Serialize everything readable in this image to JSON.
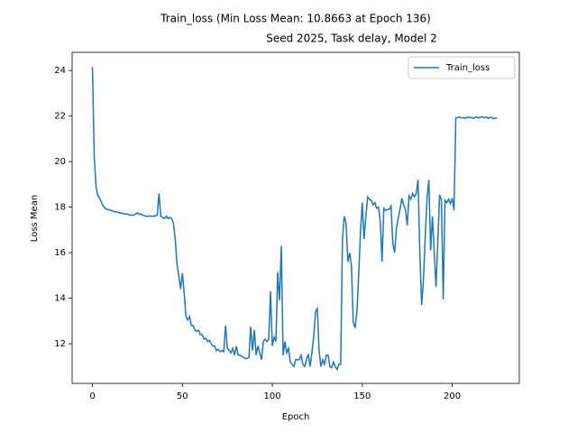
{
  "chart_data": {
    "type": "line",
    "title": [
      "Train_loss (Min Loss Mean: 10.8663 at Epoch 136)",
      "Seed 2025, Task delay, Model 2"
    ],
    "xlabel": "Epoch",
    "ylabel": "Loss Mean",
    "xlim": [
      -11.3,
      237.3
    ],
    "ylim": [
      10.26,
      24.8
    ],
    "xticks": [
      0,
      50,
      100,
      150,
      200
    ],
    "yticks": [
      12,
      14,
      16,
      18,
      20,
      22,
      24
    ],
    "legend": "upper right",
    "grid": false,
    "x": [
      0,
      1,
      2,
      3,
      4,
      5,
      6,
      7,
      8,
      9,
      10,
      11,
      12,
      13,
      14,
      15,
      16,
      17,
      18,
      19,
      20,
      21,
      22,
      23,
      24,
      25,
      26,
      27,
      28,
      29,
      30,
      31,
      32,
      33,
      34,
      35,
      36,
      37,
      38,
      39,
      40,
      41,
      42,
      43,
      44,
      45,
      46,
      47,
      48,
      49,
      50,
      51,
      52,
      53,
      54,
      55,
      56,
      57,
      58,
      59,
      60,
      61,
      62,
      63,
      64,
      65,
      66,
      67,
      68,
      69,
      70,
      71,
      72,
      73,
      74,
      75,
      76,
      77,
      78,
      79,
      80,
      81,
      82,
      83,
      84,
      85,
      86,
      87,
      88,
      89,
      90,
      91,
      92,
      93,
      94,
      95,
      96,
      97,
      98,
      99,
      100,
      101,
      102,
      103,
      104,
      105,
      106,
      107,
      108,
      109,
      110,
      111,
      112,
      113,
      114,
      115,
      116,
      117,
      118,
      119,
      120,
      121,
      122,
      123,
      124,
      125,
      126,
      127,
      128,
      129,
      130,
      131,
      132,
      133,
      134,
      135,
      136,
      137,
      138,
      139,
      140,
      141,
      142,
      143,
      144,
      145,
      146,
      147,
      148,
      149,
      150,
      151,
      152,
      153,
      154,
      155,
      156,
      157,
      158,
      159,
      160,
      161,
      162,
      163,
      164,
      165,
      166,
      167,
      168,
      169,
      170,
      171,
      172,
      173,
      174,
      175,
      176,
      177,
      178,
      179,
      180,
      181,
      182,
      183,
      184,
      185,
      186,
      187,
      188,
      189,
      190,
      191,
      192,
      193,
      194,
      195,
      196,
      197,
      198,
      199,
      200,
      201,
      202,
      203,
      204,
      205,
      206,
      207,
      208,
      209,
      210,
      211,
      212,
      213,
      214,
      215,
      216,
      217,
      218,
      219,
      220,
      221,
      222,
      223,
      224,
      225
    ],
    "series": [
      {
        "name": "Train_loss",
        "color": "#1f77b4",
        "values": [
          24.15,
          20.2,
          18.9,
          18.5,
          18.4,
          18.2,
          18.05,
          17.95,
          17.9,
          17.9,
          17.85,
          17.85,
          17.8,
          17.8,
          17.78,
          17.75,
          17.75,
          17.72,
          17.7,
          17.7,
          17.68,
          17.65,
          17.65,
          17.65,
          17.7,
          17.75,
          17.68,
          17.7,
          17.65,
          17.62,
          17.6,
          17.6,
          17.62,
          17.6,
          17.6,
          17.62,
          17.65,
          18.6,
          17.6,
          17.55,
          17.5,
          17.6,
          17.5,
          17.55,
          17.5,
          17.3,
          16.6,
          15.5,
          15.0,
          14.4,
          15.1,
          14.2,
          13.2,
          13.05,
          13.2,
          12.8,
          12.8,
          12.6,
          12.55,
          12.6,
          12.4,
          12.4,
          12.2,
          12.25,
          12.1,
          12.15,
          12.0,
          11.9,
          11.9,
          11.7,
          11.75,
          11.65,
          11.7,
          11.65,
          12.8,
          11.8,
          11.7,
          11.6,
          11.8,
          11.5,
          11.9,
          11.5,
          11.5,
          11.45,
          11.4,
          11.35,
          11.35,
          11.4,
          12.75,
          11.7,
          12.6,
          11.5,
          11.9,
          11.6,
          11.3,
          12.1,
          12.2,
          12.1,
          12.2,
          14.3,
          11.9,
          12.3,
          12.1,
          15.15,
          13.9,
          16.3,
          11.5,
          12.1,
          11.6,
          11.8,
          11.2,
          11.1,
          11.0,
          11.3,
          11.3,
          11.3,
          11.5,
          11.1,
          11.0,
          11.3,
          11.55,
          11.0,
          11.6,
          12.3,
          13.4,
          13.55,
          11.7,
          11.0,
          11.3,
          11.1,
          11.5,
          11.5,
          11.0,
          10.95,
          11.2,
          11.0,
          10.87,
          11.1,
          11.1,
          16.6,
          17.6,
          17.3,
          15.6,
          16.0,
          15.4,
          12.95,
          12.7,
          13.4,
          15.0,
          16.9,
          18.2,
          16.6,
          17.6,
          18.45,
          18.35,
          18.3,
          18.1,
          18.2,
          17.95,
          18.0,
          17.4,
          15.6,
          17.95,
          17.85,
          17.9,
          17.9,
          18.05,
          16.4,
          16.0,
          17.1,
          17.5,
          17.9,
          18.4,
          18.1,
          17.9,
          17.2,
          18.5,
          18.35,
          18.6,
          18.45,
          18.6,
          19.2,
          16.0,
          13.7,
          14.8,
          16.7,
          18.4,
          19.2,
          16.1,
          17.6,
          16.0,
          14.5,
          16.5,
          18.55,
          18.3,
          13.95,
          18.3,
          18.2,
          18.35,
          18.15,
          18.4,
          17.85,
          21.9,
          21.95,
          21.95,
          21.92,
          21.93,
          21.9,
          21.95,
          21.93,
          21.95,
          21.92,
          21.9,
          21.96,
          21.94,
          21.92,
          21.97,
          21.95,
          21.93,
          21.96,
          21.9,
          21.95,
          21.93,
          21.88,
          21.92,
          21.9
        ]
      }
    ]
  }
}
